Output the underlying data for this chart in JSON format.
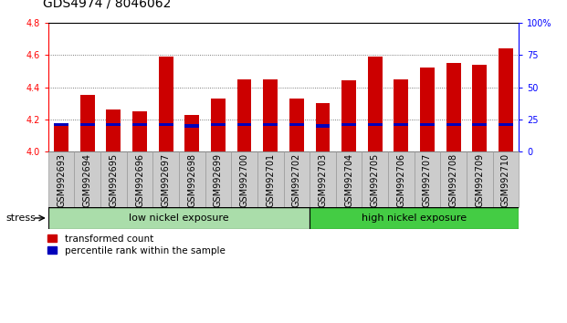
{
  "title": "GDS4974 / 8046062",
  "samples": [
    "GSM992693",
    "GSM992694",
    "GSM992695",
    "GSM992696",
    "GSM992697",
    "GSM992698",
    "GSM992699",
    "GSM992700",
    "GSM992701",
    "GSM992702",
    "GSM992703",
    "GSM992704",
    "GSM992705",
    "GSM992706",
    "GSM992707",
    "GSM992708",
    "GSM992709",
    "GSM992710"
  ],
  "transformed_count": [
    4.16,
    4.35,
    4.26,
    4.25,
    4.59,
    4.23,
    4.33,
    4.45,
    4.45,
    4.33,
    4.3,
    4.44,
    4.59,
    4.45,
    4.52,
    4.55,
    4.54,
    4.64
  ],
  "percentile_rank": [
    21,
    21,
    21,
    21,
    21,
    20,
    21,
    21,
    21,
    21,
    20,
    21,
    21,
    21,
    21,
    21,
    21,
    21
  ],
  "ylim_left": [
    4.0,
    4.8
  ],
  "ylim_right": [
    0,
    100
  ],
  "yticks_left": [
    4.0,
    4.2,
    4.4,
    4.6,
    4.8
  ],
  "yticks_right": [
    0,
    25,
    50,
    75,
    100
  ],
  "bar_color_red": "#cc0000",
  "bar_color_blue": "#0000bb",
  "bar_width": 0.55,
  "blue_bar_height": 0.018,
  "low_nickel_count": 10,
  "high_nickel_count": 8,
  "group_low_label": "low nickel exposure",
  "group_high_label": "high nickel exposure",
  "stress_label": "stress",
  "legend_red": "transformed count",
  "legend_blue": "percentile rank within the sample",
  "group_low_color": "#aaddaa",
  "group_high_color": "#44cc44",
  "title_fontsize": 10,
  "tick_fontsize": 7,
  "dotted_grid_color": "#555555",
  "xticklabel_bg": "#cccccc",
  "xticklabel_border": "#999999"
}
